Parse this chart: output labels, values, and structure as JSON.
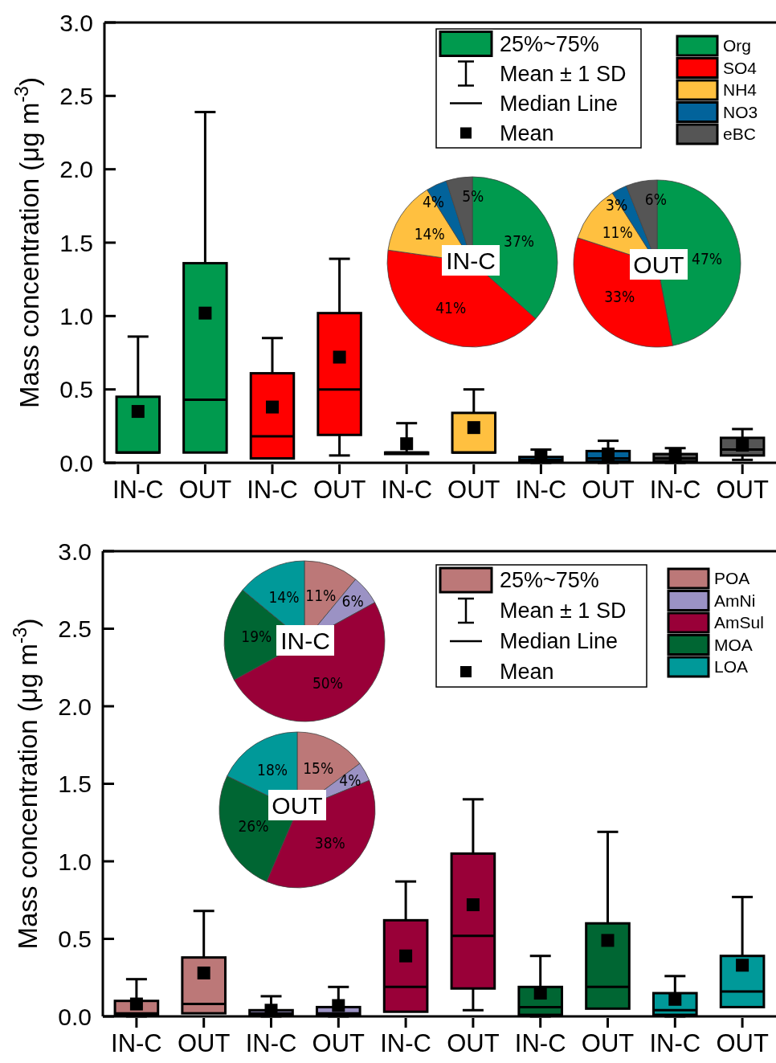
{
  "chart_data": [
    {
      "type": "box",
      "ylabel": "Mass concentration (μg m$^{-3}$)",
      "categories": [
        "IN-C",
        "OUT",
        "IN-C",
        "OUT",
        "IN-C",
        "OUT",
        "IN-C",
        "OUT",
        "IN-C",
        "OUT"
      ],
      "ylim": [
        0,
        3
      ],
      "yticks": [
        {
          "value": 0,
          "label": "0.0"
        },
        {
          "value": 0.5,
          "label": "0.5"
        },
        {
          "value": 1,
          "label": "1.0"
        },
        {
          "value": 1.5,
          "label": "1.5"
        },
        {
          "value": 2,
          "label": "2.0"
        },
        {
          "value": 2.5,
          "label": "2.5"
        },
        {
          "value": 3,
          "label": "3.0"
        }
      ],
      "legend": "top right",
      "grid": false,
      "annotations": [
        "25%~75%",
        "Mean ± 1 SD",
        "Median Line",
        "Mean"
      ],
      "series": [
        {
          "name": "Org",
          "color": "#009a4e",
          "boxes": [
            {
              "low": 0.07,
              "q1": 0.07,
              "median": 0.07,
              "q3": 0.45,
              "high": 0.86,
              "mean": 0.35
            },
            {
              "low": 0.07,
              "q1": 0.07,
              "median": 0.43,
              "q3": 1.36,
              "high": 2.39,
              "mean": 1.02
            },
            null,
            null,
            null,
            null,
            null,
            null,
            null,
            null
          ]
        },
        {
          "name": "SO4",
          "color": "#ff0000",
          "boxes": [
            null,
            null,
            {
              "low": 0.03,
              "q1": 0.03,
              "median": 0.18,
              "q3": 0.61,
              "high": 0.85,
              "mean": 0.38
            },
            {
              "low": 0.05,
              "q1": 0.19,
              "median": 0.5,
              "q3": 1.02,
              "high": 1.39,
              "mean": 0.72
            },
            null,
            null,
            null,
            null,
            null,
            null
          ]
        },
        {
          "name": "NH4",
          "color": "#ffc040",
          "boxes": [
            null,
            null,
            null,
            null,
            {
              "low": 0.06,
              "q1": 0.06,
              "median": 0.07,
              "q3": 0.07,
              "high": 0.27,
              "mean": 0.13
            },
            {
              "low": 0.07,
              "q1": 0.07,
              "median": 0.07,
              "q3": 0.34,
              "high": 0.5,
              "mean": 0.24
            },
            null,
            null,
            null,
            null
          ]
        },
        {
          "name": "NO3",
          "color": "#02639b",
          "boxes": [
            null,
            null,
            null,
            null,
            null,
            null,
            {
              "low": 0,
              "q1": 0.01,
              "median": 0.02,
              "q3": 0.04,
              "high": 0.09,
              "mean": 0.04
            },
            {
              "low": 0,
              "q1": 0.01,
              "median": 0.03,
              "q3": 0.08,
              "high": 0.15,
              "mean": 0.06
            },
            null,
            null
          ]
        },
        {
          "name": "eBC",
          "color": "#555555",
          "boxes": [
            null,
            null,
            null,
            null,
            null,
            null,
            null,
            null,
            {
              "low": 0,
              "q1": 0.01,
              "median": 0.03,
              "q3": 0.06,
              "high": 0.1,
              "mean": 0.05
            },
            {
              "low": 0.02,
              "q1": 0.05,
              "median": 0.09,
              "q3": 0.17,
              "high": 0.23,
              "mean": 0.12
            }
          ]
        }
      ]
    },
    {
      "type": "pie",
      "title": "IN-C",
      "categories": [
        null,
        null,
        null,
        null,
        null
      ],
      "values": [
        37,
        41,
        14,
        4,
        5
      ],
      "value_labels": [
        "37%",
        "41%",
        "14%",
        "4%",
        "5%"
      ],
      "colors": [
        "#009a4e",
        "#ff0000",
        "#ffc040",
        "#02639b",
        "#555555"
      ]
    },
    {
      "type": "pie",
      "title": "OUT",
      "categories": [
        null,
        null,
        null,
        null,
        null
      ],
      "values": [
        47,
        33,
        11,
        3,
        6
      ],
      "value_labels": [
        "47%",
        "33%",
        "11%",
        "3%",
        "6%"
      ],
      "colors": [
        "#009a4e",
        "#ff0000",
        "#ffc040",
        "#02639b",
        "#555555"
      ]
    },
    {
      "type": "box",
      "ylabel": "Mass concentration (μg m$^{-3}$)",
      "categories": [
        "IN-C",
        "OUT",
        "IN-C",
        "OUT",
        "IN-C",
        "OUT",
        "IN-C",
        "OUT",
        "IN-C",
        "OUT"
      ],
      "ylim": [
        0,
        3
      ],
      "yticks": [
        {
          "value": 0,
          "label": "0.0"
        },
        {
          "value": 0.5,
          "label": "0.5"
        },
        {
          "value": 1,
          "label": "1.0"
        },
        {
          "value": 1.5,
          "label": "1.5"
        },
        {
          "value": 2,
          "label": "2.0"
        },
        {
          "value": 2.5,
          "label": "2.5"
        },
        {
          "value": 3,
          "label": "3.0"
        }
      ],
      "legend": "top right",
      "grid": false,
      "annotations": [
        "25%~75%",
        "Mean ± 1 SD",
        "Median Line",
        "Mean"
      ],
      "series": [
        {
          "name": "POA",
          "color": "#bc7878",
          "boxes": [
            {
              "low": 0,
              "q1": 0.01,
              "median": 0.02,
              "q3": 0.1,
              "high": 0.24,
              "mean": 0.08
            },
            {
              "low": 0.02,
              "q1": 0.02,
              "median": 0.08,
              "q3": 0.38,
              "high": 0.68,
              "mean": 0.28
            },
            null,
            null,
            null,
            null,
            null,
            null,
            null,
            null
          ]
        },
        {
          "name": "AmNi",
          "color": "#9b92c4",
          "boxes": [
            null,
            null,
            {
              "low": 0,
              "q1": 0.01,
              "median": 0.02,
              "q3": 0.04,
              "high": 0.13,
              "mean": 0.04
            },
            {
              "low": 0,
              "q1": 0.01,
              "median": 0.02,
              "q3": 0.06,
              "high": 0.19,
              "mean": 0.07
            },
            null,
            null,
            null,
            null,
            null,
            null
          ]
        },
        {
          "name": "AmSul",
          "color": "#990038",
          "boxes": [
            null,
            null,
            null,
            null,
            {
              "low": 0.03,
              "q1": 0.03,
              "median": 0.19,
              "q3": 0.62,
              "high": 0.87,
              "mean": 0.39
            },
            {
              "low": 0.04,
              "q1": 0.18,
              "median": 0.52,
              "q3": 1.05,
              "high": 1.4,
              "mean": 0.72
            },
            null,
            null,
            null,
            null
          ]
        },
        {
          "name": "MOA",
          "color": "#006633",
          "boxes": [
            null,
            null,
            null,
            null,
            null,
            null,
            {
              "low": 0,
              "q1": 0.01,
              "median": 0.06,
              "q3": 0.19,
              "high": 0.39,
              "mean": 0.15
            },
            {
              "low": 0.05,
              "q1": 0.05,
              "median": 0.19,
              "q3": 0.6,
              "high": 1.19,
              "mean": 0.49
            },
            null,
            null
          ]
        },
        {
          "name": "LOA",
          "color": "#009999",
          "boxes": [
            null,
            null,
            null,
            null,
            null,
            null,
            null,
            null,
            {
              "low": 0,
              "q1": 0.01,
              "median": 0.04,
              "q3": 0.15,
              "high": 0.26,
              "mean": 0.11
            },
            {
              "low": 0.06,
              "q1": 0.06,
              "median": 0.16,
              "q3": 0.39,
              "high": 0.77,
              "mean": 0.33
            }
          ]
        }
      ]
    },
    {
      "type": "pie",
      "title": "IN-C",
      "categories": [
        null,
        null,
        null,
        null,
        null
      ],
      "values": [
        11,
        6,
        50,
        19,
        14
      ],
      "value_labels": [
        "11%",
        "6%",
        "50%",
        "19%",
        "14%"
      ],
      "colors": [
        "#bc7878",
        "#9b92c4",
        "#990038",
        "#006633",
        "#009999"
      ]
    },
    {
      "type": "pie",
      "title": "OUT",
      "categories": [
        null,
        null,
        null,
        null,
        null
      ],
      "values": [
        15,
        4,
        38,
        26,
        18
      ],
      "value_labels": [
        "15%",
        "4%",
        "38%",
        "26%",
        "18%"
      ],
      "colors": [
        "#bc7878",
        "#9b92c4",
        "#990038",
        "#006633",
        "#009999"
      ]
    }
  ]
}
